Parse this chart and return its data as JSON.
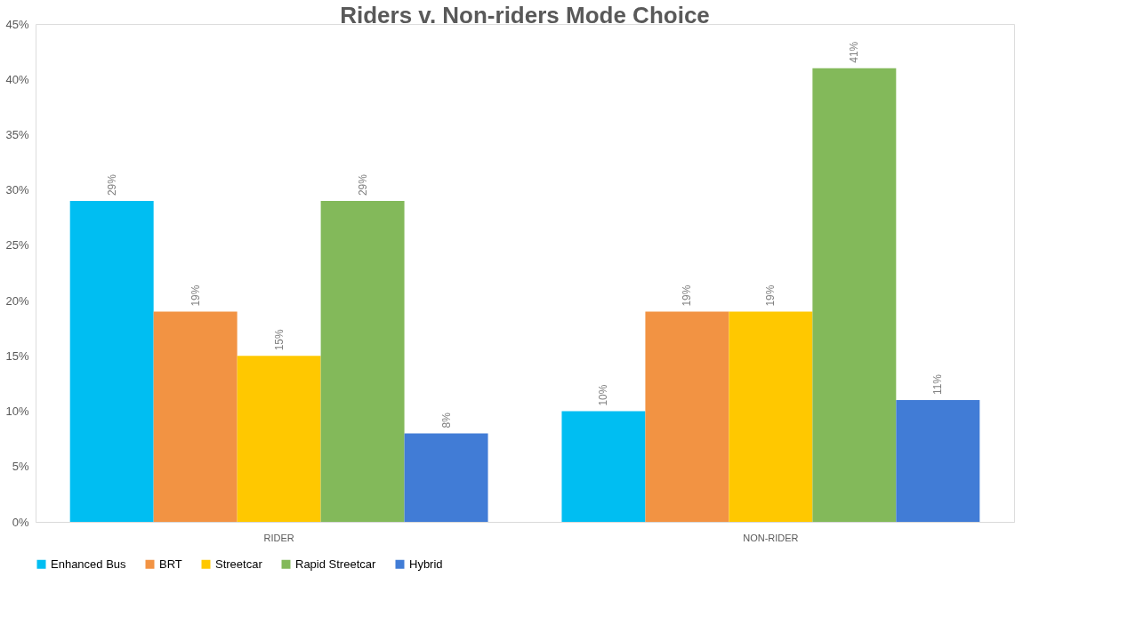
{
  "chart_data": {
    "type": "bar",
    "title": "Riders v. Non-riders Mode Choice",
    "categories": [
      "RIDER",
      "NON-RIDER"
    ],
    "series": [
      {
        "name": "Enhanced Bus",
        "color": "#00bef2",
        "values": [
          29,
          10
        ],
        "value_labels": [
          "29%",
          "10%"
        ]
      },
      {
        "name": "BRT",
        "color": "#f29343",
        "values": [
          19,
          19
        ],
        "value_labels": [
          "19%",
          "19%"
        ]
      },
      {
        "name": "Streetcar",
        "color": "#ffc800",
        "values": [
          15,
          19
        ],
        "value_labels": [
          "15%",
          "19%"
        ]
      },
      {
        "name": "Rapid Streetcar",
        "color": "#83b95a",
        "values": [
          29,
          41
        ],
        "value_labels": [
          "29%",
          "41%"
        ]
      },
      {
        "name": "Hybrid",
        "color": "#417cd6",
        "values": [
          8,
          11
        ],
        "value_labels": [
          "8%",
          "11%"
        ]
      }
    ],
    "ylim": [
      0,
      45
    ],
    "yticks": [
      {
        "value": 0,
        "label": "0%"
      },
      {
        "value": 5,
        "label": "5%"
      },
      {
        "value": 10,
        "label": "10%"
      },
      {
        "value": 15,
        "label": "15%"
      },
      {
        "value": 20,
        "label": "20%"
      },
      {
        "value": 25,
        "label": "25%"
      },
      {
        "value": 30,
        "label": "30%"
      },
      {
        "value": 35,
        "label": "35%"
      },
      {
        "value": 40,
        "label": "40%"
      },
      {
        "value": 45,
        "label": "45%"
      }
    ],
    "grid": false,
    "legend": "bottom"
  }
}
